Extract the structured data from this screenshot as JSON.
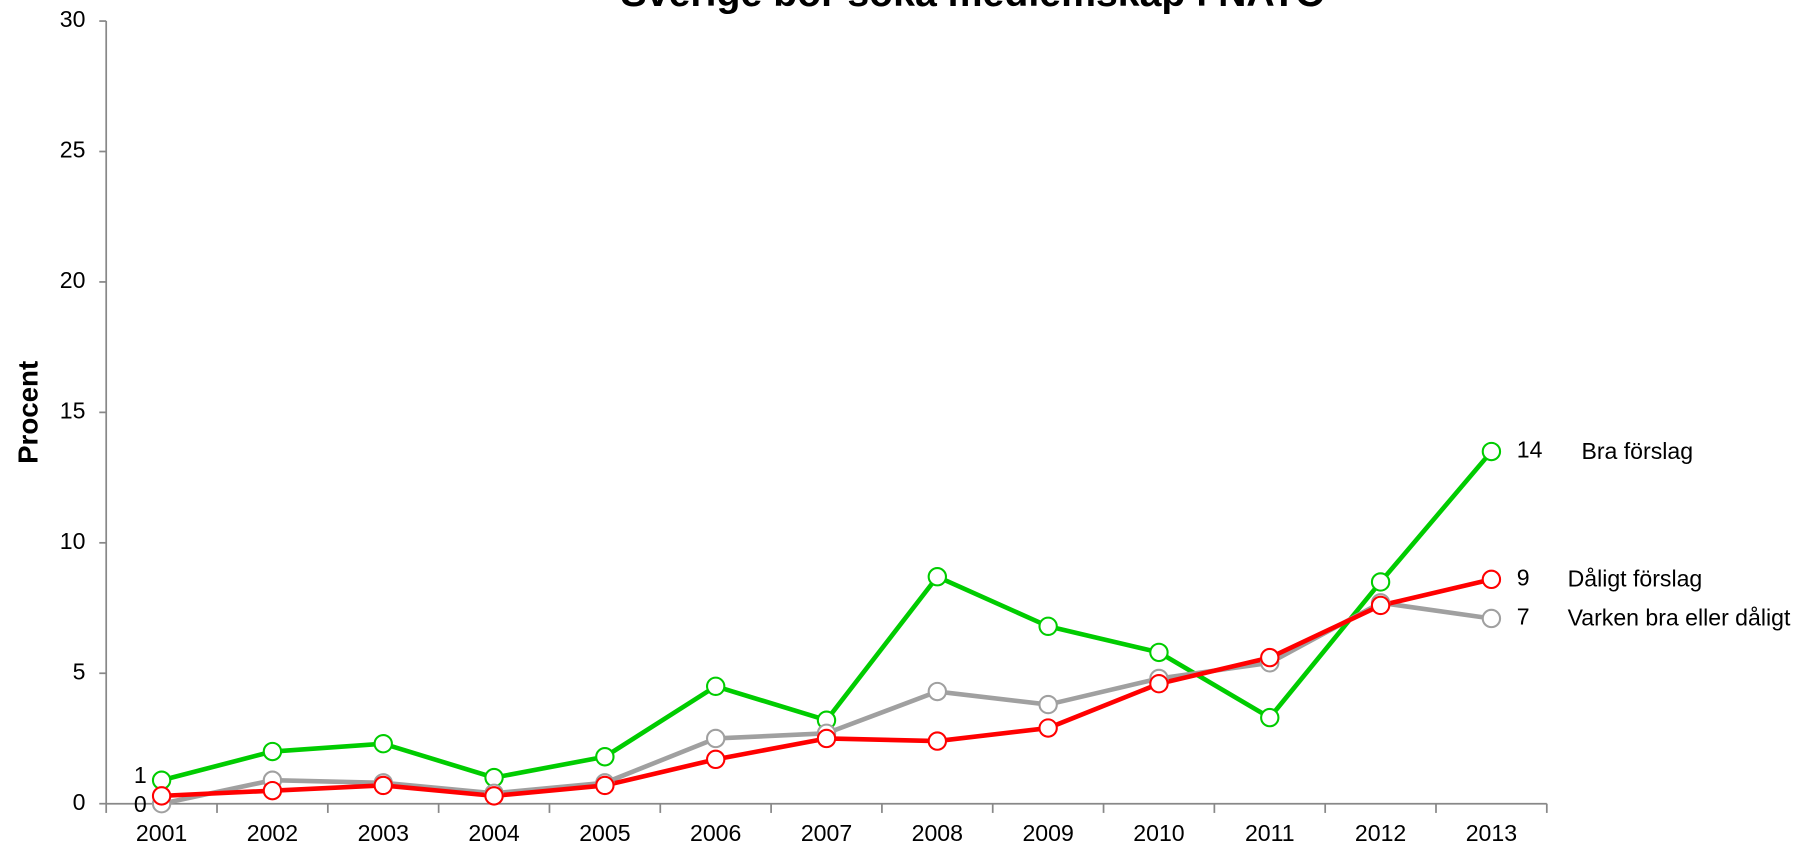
{
  "chart_data": {
    "type": "line",
    "title": "Sverige bör söka medlemskap i NATO",
    "y_label": "Procent",
    "categories": [
      "2001",
      "2002",
      "2003",
      "2004",
      "2005",
      "2006",
      "2007",
      "2008",
      "2009",
      "2010",
      "2011",
      "2012",
      "2013"
    ],
    "series": [
      {
        "name": "Bra förslag",
        "color": "#00cc00",
        "values": [
          0.9,
          2.0,
          2.3,
          1.0,
          1.8,
          4.5,
          3.2,
          8.7,
          6.8,
          5.8,
          3.3,
          8.5,
          13.5
        ],
        "value_labels": [
          "1",
          null,
          null,
          null,
          null,
          null,
          null,
          null,
          null,
          null,
          null,
          null,
          "14"
        ]
      },
      {
        "name": "Varken bra eller dåligt",
        "color": "#a0a0a0",
        "values": [
          0.0,
          0.9,
          0.8,
          0.4,
          0.8,
          2.5,
          2.7,
          4.3,
          3.8,
          4.8,
          5.4,
          7.7,
          7.1
        ],
        "value_labels": [
          "0",
          null,
          null,
          null,
          null,
          null,
          null,
          null,
          null,
          null,
          null,
          null,
          "7"
        ]
      },
      {
        "name": "Dåligt förslag",
        "color": "#ff0000",
        "values": [
          0.3,
          0.5,
          0.7,
          0.3,
          0.7,
          1.7,
          2.5,
          2.4,
          2.9,
          4.6,
          5.6,
          7.6,
          8.6
        ],
        "value_labels": [
          null,
          null,
          null,
          null,
          null,
          null,
          null,
          null,
          null,
          null,
          null,
          null,
          "9"
        ]
      }
    ],
    "ylim": [
      0,
      30
    ],
    "yticks": [
      0,
      5,
      10,
      15,
      20,
      25,
      30
    ],
    "grid": false
  }
}
